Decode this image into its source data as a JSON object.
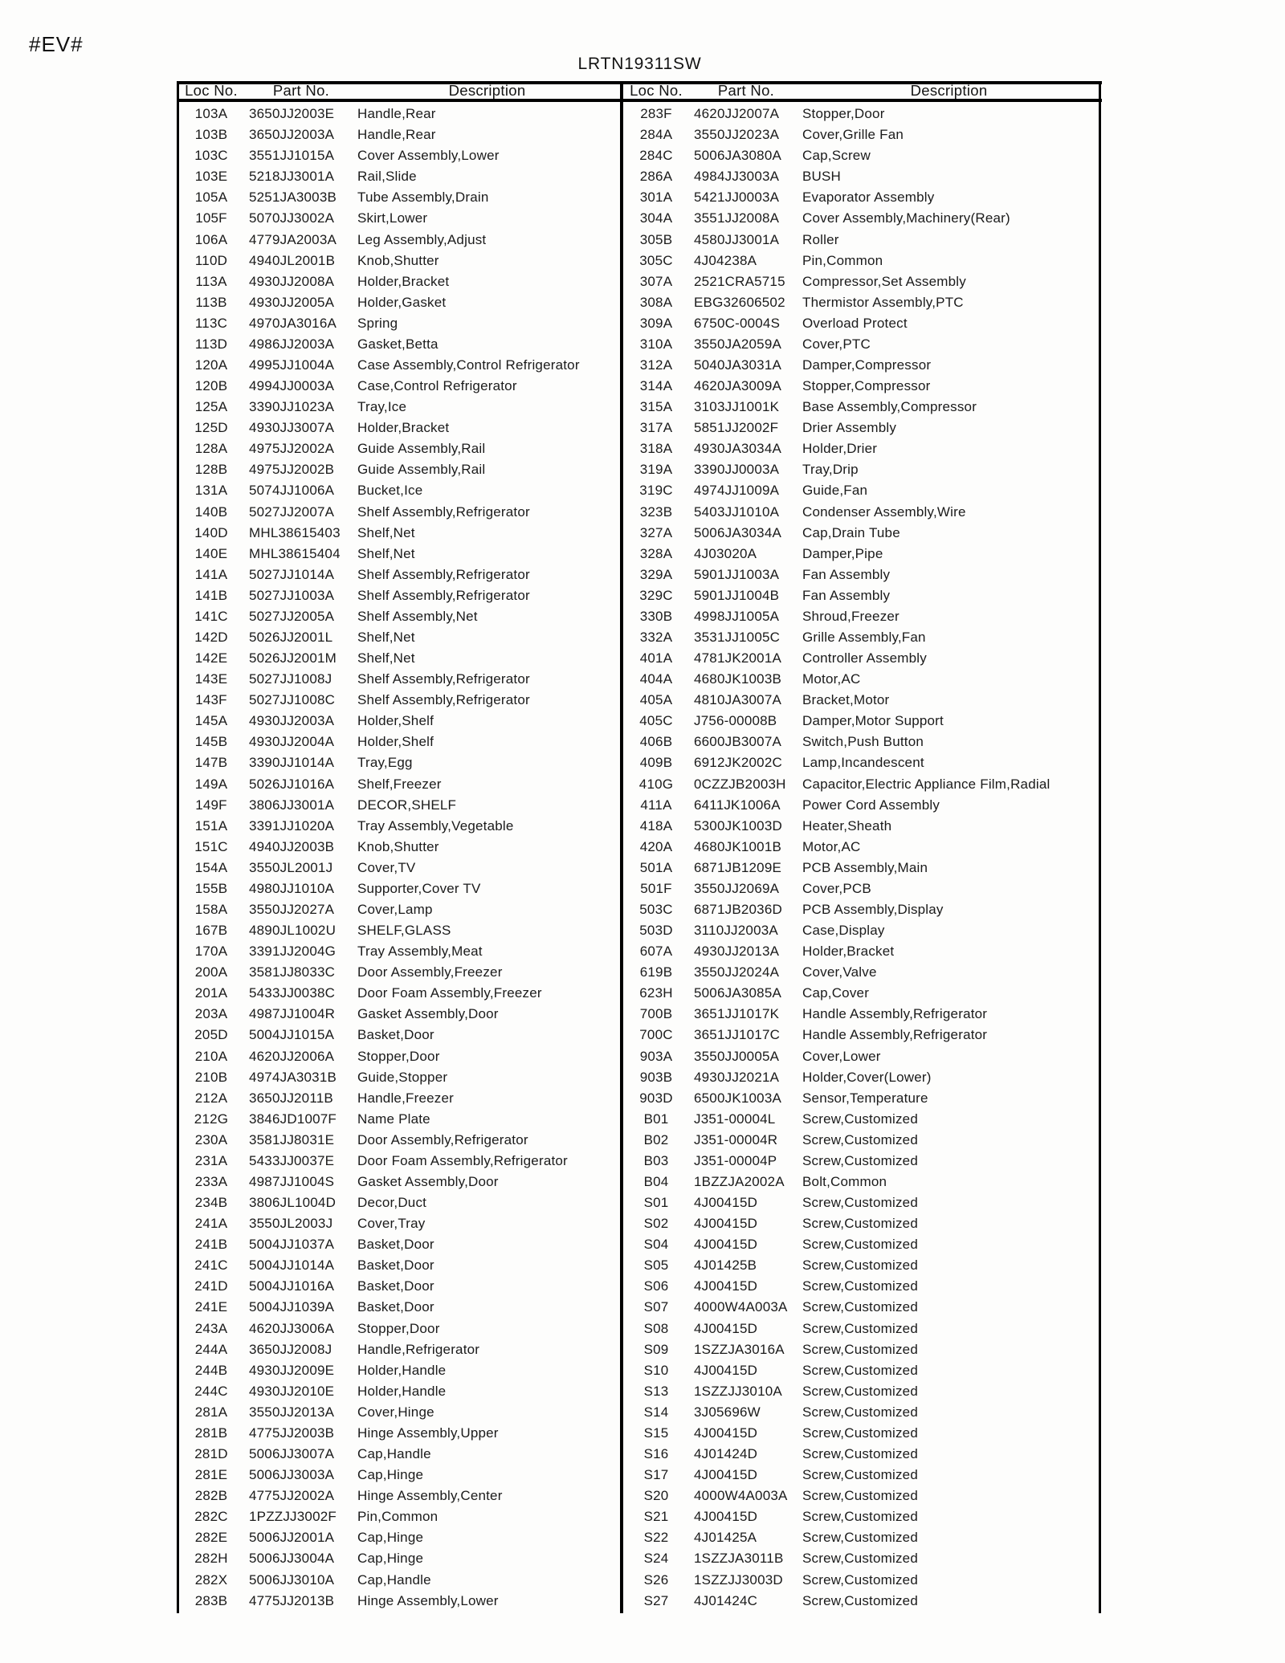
{
  "page": {
    "corner_mark": "#EV#",
    "title": "LRTN19311SW"
  },
  "table": {
    "col_headers": [
      "Loc No.",
      "Part No.",
      "Description"
    ],
    "left_rows": [
      [
        "103A",
        "3650JJ2003E",
        "Handle,Rear"
      ],
      [
        "103B",
        "3650JJ2003A",
        "Handle,Rear"
      ],
      [
        "103C",
        "3551JJ1015A",
        "Cover Assembly,Lower"
      ],
      [
        "103E",
        "5218JJ3001A",
        "Rail,Slide"
      ],
      [
        "105A",
        "5251JA3003B",
        "Tube Assembly,Drain"
      ],
      [
        "105F",
        "5070JJ3002A",
        "Skirt,Lower"
      ],
      [
        "106A",
        "4779JA2003A",
        "Leg Assembly,Adjust"
      ],
      [
        "110D",
        "4940JL2001B",
        "Knob,Shutter"
      ],
      [
        "113A",
        "4930JJ2008A",
        "Holder,Bracket"
      ],
      [
        "113B",
        "4930JJ2005A",
        "Holder,Gasket"
      ],
      [
        "113C",
        "4970JA3016A",
        "Spring"
      ],
      [
        "113D",
        "4986JJ2003A",
        "Gasket,Betta"
      ],
      [
        "120A",
        "4995JJ1004A",
        "Case Assembly,Control Refrigerator"
      ],
      [
        "120B",
        "4994JJ0003A",
        "Case,Control Refrigerator"
      ],
      [
        "125A",
        "3390JJ1023A",
        "Tray,Ice"
      ],
      [
        "125D",
        "4930JJ3007A",
        "Holder,Bracket"
      ],
      [
        "128A",
        "4975JJ2002A",
        "Guide Assembly,Rail"
      ],
      [
        "128B",
        "4975JJ2002B",
        "Guide Assembly,Rail"
      ],
      [
        "131A",
        "5074JJ1006A",
        "Bucket,Ice"
      ],
      [
        "140B",
        "5027JJ2007A",
        "Shelf Assembly,Refrigerator"
      ],
      [
        "140D",
        "MHL38615403",
        "Shelf,Net"
      ],
      [
        "140E",
        "MHL38615404",
        "Shelf,Net"
      ],
      [
        "141A",
        "5027JJ1014A",
        "Shelf Assembly,Refrigerator"
      ],
      [
        "141B",
        "5027JJ1003A",
        "Shelf Assembly,Refrigerator"
      ],
      [
        "141C",
        "5027JJ2005A",
        "Shelf Assembly,Net"
      ],
      [
        "142D",
        "5026JJ2001L",
        "Shelf,Net"
      ],
      [
        "142E",
        "5026JJ2001M",
        "Shelf,Net"
      ],
      [
        "143E",
        "5027JJ1008J",
        "Shelf Assembly,Refrigerator"
      ],
      [
        "143F",
        "5027JJ1008C",
        "Shelf Assembly,Refrigerator"
      ],
      [
        "145A",
        "4930JJ2003A",
        "Holder,Shelf"
      ],
      [
        "145B",
        "4930JJ2004A",
        "Holder,Shelf"
      ],
      [
        "147B",
        "3390JJ1014A",
        "Tray,Egg"
      ],
      [
        "149A",
        "5026JJ1016A",
        "Shelf,Freezer"
      ],
      [
        "149F",
        "3806JJ3001A",
        "DECOR,SHELF"
      ],
      [
        "151A",
        "3391JJ1020A",
        "Tray Assembly,Vegetable"
      ],
      [
        "151C",
        "4940JJ2003B",
        "Knob,Shutter"
      ],
      [
        "154A",
        "3550JL2001J",
        "Cover,TV"
      ],
      [
        "155B",
        "4980JJ1010A",
        "Supporter,Cover TV"
      ],
      [
        "158A",
        "3550JJ2027A",
        "Cover,Lamp"
      ],
      [
        "167B",
        "4890JL1002U",
        "SHELF,GLASS"
      ],
      [
        "170A",
        "3391JJ2004G",
        "Tray Assembly,Meat"
      ],
      [
        "200A",
        "3581JJ8033C",
        "Door Assembly,Freezer"
      ],
      [
        "201A",
        "5433JJ0038C",
        "Door Foam Assembly,Freezer"
      ],
      [
        "203A",
        "4987JJ1004R",
        "Gasket Assembly,Door"
      ],
      [
        "205D",
        "5004JJ1015A",
        "Basket,Door"
      ],
      [
        "210A",
        "4620JJ2006A",
        "Stopper,Door"
      ],
      [
        "210B",
        "4974JA3031B",
        "Guide,Stopper"
      ],
      [
        "212A",
        "3650JJ2011B",
        "Handle,Freezer"
      ],
      [
        "212G",
        "3846JD1007F",
        "Name Plate"
      ],
      [
        "230A",
        "3581JJ8031E",
        "Door Assembly,Refrigerator"
      ],
      [
        "231A",
        "5433JJ0037E",
        "Door Foam Assembly,Refrigerator"
      ],
      [
        "233A",
        "4987JJ1004S",
        "Gasket Assembly,Door"
      ],
      [
        "234B",
        "3806JL1004D",
        "Decor,Duct"
      ],
      [
        "241A",
        "3550JL2003J",
        "Cover,Tray"
      ],
      [
        "241B",
        "5004JJ1037A",
        "Basket,Door"
      ],
      [
        "241C",
        "5004JJ1014A",
        "Basket,Door"
      ],
      [
        "241D",
        "5004JJ1016A",
        "Basket,Door"
      ],
      [
        "241E",
        "5004JJ1039A",
        "Basket,Door"
      ],
      [
        "243A",
        "4620JJ3006A",
        "Stopper,Door"
      ],
      [
        "244A",
        "3650JJ2008J",
        "Handle,Refrigerator"
      ],
      [
        "244B",
        "4930JJ2009E",
        "Holder,Handle"
      ],
      [
        "244C",
        "4930JJ2010E",
        "Holder,Handle"
      ],
      [
        "281A",
        "3550JJ2013A",
        "Cover,Hinge"
      ],
      [
        "281B",
        "4775JJ2003B",
        "Hinge Assembly,Upper"
      ],
      [
        "281D",
        "5006JJ3007A",
        "Cap,Handle"
      ],
      [
        "281E",
        "5006JJ3003A",
        "Cap,Hinge"
      ],
      [
        "282B",
        "4775JJ2002A",
        "Hinge Assembly,Center"
      ],
      [
        "282C",
        "1PZZJJ3002F",
        "Pin,Common"
      ],
      [
        "282E",
        "5006JJ2001A",
        "Cap,Hinge"
      ],
      [
        "282H",
        "5006JJ3004A",
        "Cap,Hinge"
      ],
      [
        "282X",
        "5006JJ3010A",
        "Cap,Handle"
      ],
      [
        "283B",
        "4775JJ2013B",
        "Hinge Assembly,Lower"
      ]
    ],
    "right_rows": [
      [
        "283F",
        "4620JJ2007A",
        "Stopper,Door"
      ],
      [
        "284A",
        "3550JJ2023A",
        "Cover,Grille Fan"
      ],
      [
        "284C",
        "5006JA3080A",
        "Cap,Screw"
      ],
      [
        "286A",
        "4984JJ3003A",
        "BUSH"
      ],
      [
        "301A",
        "5421JJ0003A",
        "Evaporator Assembly"
      ],
      [
        "304A",
        "3551JJ2008A",
        "Cover Assembly,Machinery(Rear)"
      ],
      [
        "305B",
        "4580JJ3001A",
        "Roller"
      ],
      [
        "305C",
        "4J04238A",
        "Pin,Common"
      ],
      [
        "307A",
        "2521CRA5715",
        "Compressor,Set Assembly"
      ],
      [
        "308A",
        "EBG32606502",
        "Thermistor Assembly,PTC"
      ],
      [
        "309A",
        "6750C-0004S",
        "Overload Protect"
      ],
      [
        "310A",
        "3550JA2059A",
        "Cover,PTC"
      ],
      [
        "312A",
        "5040JA3031A",
        "Damper,Compressor"
      ],
      [
        "314A",
        "4620JA3009A",
        "Stopper,Compressor"
      ],
      [
        "315A",
        "3103JJ1001K",
        "Base Assembly,Compressor"
      ],
      [
        "317A",
        "5851JJ2002F",
        "Drier Assembly"
      ],
      [
        "318A",
        "4930JA3034A",
        "Holder,Drier"
      ],
      [
        "319A",
        "3390JJ0003A",
        "Tray,Drip"
      ],
      [
        "319C",
        "4974JJ1009A",
        "Guide,Fan"
      ],
      [
        "323B",
        "5403JJ1010A",
        "Condenser Assembly,Wire"
      ],
      [
        "327A",
        "5006JA3034A",
        "Cap,Drain Tube"
      ],
      [
        "328A",
        "4J03020A",
        "Damper,Pipe"
      ],
      [
        "329A",
        "5901JJ1003A",
        "Fan Assembly"
      ],
      [
        "329C",
        "5901JJ1004B",
        "Fan Assembly"
      ],
      [
        "330B",
        "4998JJ1005A",
        "Shroud,Freezer"
      ],
      [
        "332A",
        "3531JJ1005C",
        "Grille Assembly,Fan"
      ],
      [
        "401A",
        "4781JK2001A",
        "Controller Assembly"
      ],
      [
        "404A",
        "4680JK1003B",
        "Motor,AC"
      ],
      [
        "405A",
        "4810JA3007A",
        "Bracket,Motor"
      ],
      [
        "405C",
        "J756-00008B",
        "Damper,Motor Support"
      ],
      [
        "406B",
        "6600JB3007A",
        "Switch,Push Button"
      ],
      [
        "409B",
        "6912JK2002C",
        "Lamp,Incandescent"
      ],
      [
        "410G",
        "0CZZJB2003H",
        "Capacitor,Electric Appliance Film,Radial"
      ],
      [
        "411A",
        "6411JK1006A",
        "Power Cord Assembly"
      ],
      [
        "418A",
        "5300JK1003D",
        "Heater,Sheath"
      ],
      [
        "420A",
        "4680JK1001B",
        "Motor,AC"
      ],
      [
        "501A",
        "6871JB1209E",
        "PCB Assembly,Main"
      ],
      [
        "501F",
        "3550JJ2069A",
        "Cover,PCB"
      ],
      [
        "503C",
        "6871JB2036D",
        "PCB Assembly,Display"
      ],
      [
        "503D",
        "3110JJ2003A",
        "Case,Display"
      ],
      [
        "607A",
        "4930JJ2013A",
        "Holder,Bracket"
      ],
      [
        "619B",
        "3550JJ2024A",
        "Cover,Valve"
      ],
      [
        "623H",
        "5006JA3085A",
        "Cap,Cover"
      ],
      [
        "700B",
        "3651JJ1017K",
        "Handle Assembly,Refrigerator"
      ],
      [
        "700C",
        "3651JJ1017C",
        "Handle Assembly,Refrigerator"
      ],
      [
        "903A",
        "3550JJ0005A",
        "Cover,Lower"
      ],
      [
        "903B",
        "4930JJ2021A",
        "Holder,Cover(Lower)"
      ],
      [
        "903D",
        "6500JK1003A",
        "Sensor,Temperature"
      ],
      [
        "B01",
        "J351-00004L",
        "Screw,Customized"
      ],
      [
        "B02",
        "J351-00004R",
        "Screw,Customized"
      ],
      [
        "B03",
        "J351-00004P",
        "Screw,Customized"
      ],
      [
        "B04",
        "1BZZJA2002A",
        "Bolt,Common"
      ],
      [
        "S01",
        "4J00415D",
        "Screw,Customized"
      ],
      [
        "S02",
        "4J00415D",
        "Screw,Customized"
      ],
      [
        "S04",
        "4J00415D",
        "Screw,Customized"
      ],
      [
        "S05",
        "4J01425B",
        "Screw,Customized"
      ],
      [
        "S06",
        "4J00415D",
        "Screw,Customized"
      ],
      [
        "S07",
        "4000W4A003A",
        "Screw,Customized"
      ],
      [
        "S08",
        "4J00415D",
        "Screw,Customized"
      ],
      [
        "S09",
        "1SZZJA3016A",
        "Screw,Customized"
      ],
      [
        "S10",
        "4J00415D",
        "Screw,Customized"
      ],
      [
        "S13",
        "1SZZJJ3010A",
        "Screw,Customized"
      ],
      [
        "S14",
        "3J05696W",
        "Screw,Customized"
      ],
      [
        "S15",
        "4J00415D",
        "Screw,Customized"
      ],
      [
        "S16",
        "4J01424D",
        "Screw,Customized"
      ],
      [
        "S17",
        "4J00415D",
        "Screw,Customized"
      ],
      [
        "S20",
        "4000W4A003A",
        "Screw,Customized"
      ],
      [
        "S21",
        "4J00415D",
        "Screw,Customized"
      ],
      [
        "S22",
        "4J01425A",
        "Screw,Customized"
      ],
      [
        "S24",
        "1SZZJA3011B",
        "Screw,Customized"
      ],
      [
        "S26",
        "1SZZJJ3003D",
        "Screw,Customized"
      ],
      [
        "S27",
        "4J01424C",
        "Screw,Customized"
      ]
    ]
  }
}
